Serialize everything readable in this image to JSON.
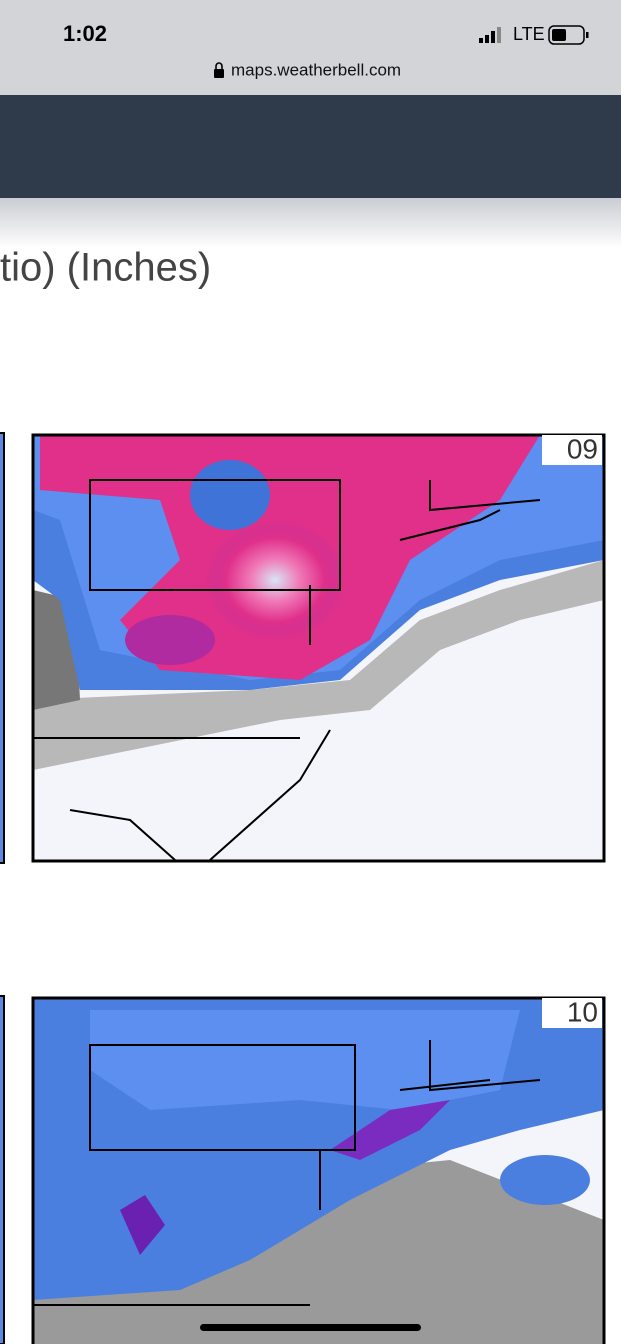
{
  "status_bar": {
    "time": "1:02",
    "network": "LTE"
  },
  "browser": {
    "url": "maps.weatherbell.com"
  },
  "page": {
    "title_fragment": "tio) (Inches)",
    "panels": [
      {
        "label": "09"
      },
      {
        "label": "10"
      }
    ]
  }
}
